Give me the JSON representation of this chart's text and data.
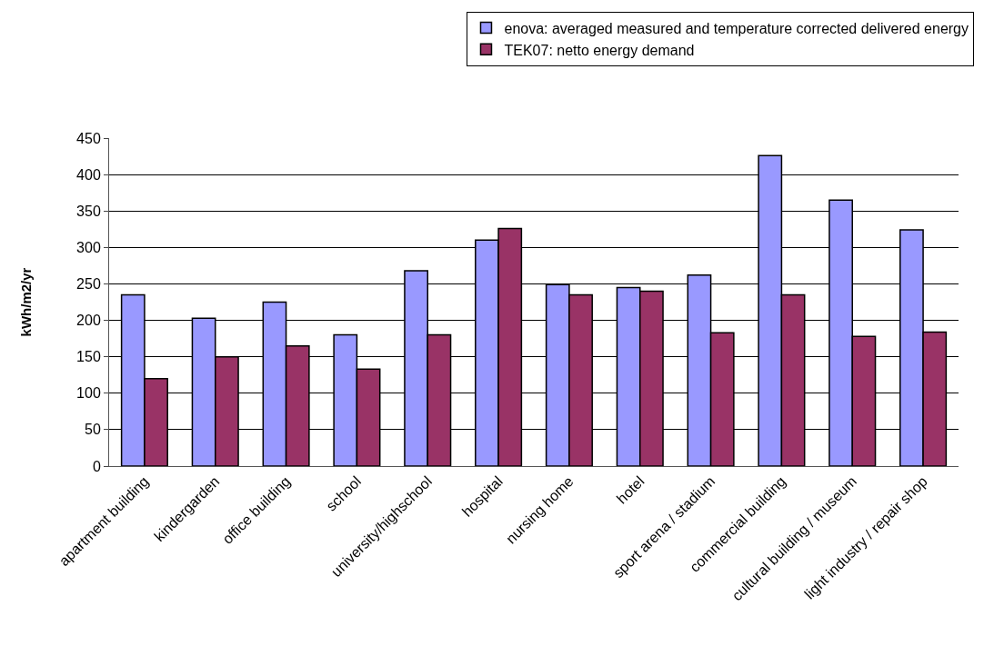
{
  "chart_data": {
    "type": "bar",
    "ylabel": "kWh/m2/yr",
    "categories": [
      "apartment building",
      "kindergarden",
      "office building",
      "school",
      "university/highschool",
      "hospital",
      "nursing home",
      "hotel",
      "sport arena / stadium",
      "commercial building",
      "cultural building / museum",
      "light industry / repair shop"
    ],
    "series": [
      {
        "name": "enova: averaged measured and temperature corrected delivered energy",
        "color": "#9999ff",
        "values": [
          235,
          203,
          225,
          180,
          268,
          310,
          249,
          245,
          262,
          426,
          365,
          324
        ]
      },
      {
        "name": "TEK07: netto energy demand",
        "color": "#993366",
        "values": [
          120,
          150,
          165,
          133,
          180,
          326,
          235,
          240,
          183,
          235,
          178,
          184
        ]
      }
    ],
    "ylim": [
      0,
      450
    ],
    "yticks": [
      0,
      50,
      100,
      150,
      200,
      250,
      300,
      350,
      400,
      450
    ],
    "grid": "y",
    "legend": "top"
  }
}
